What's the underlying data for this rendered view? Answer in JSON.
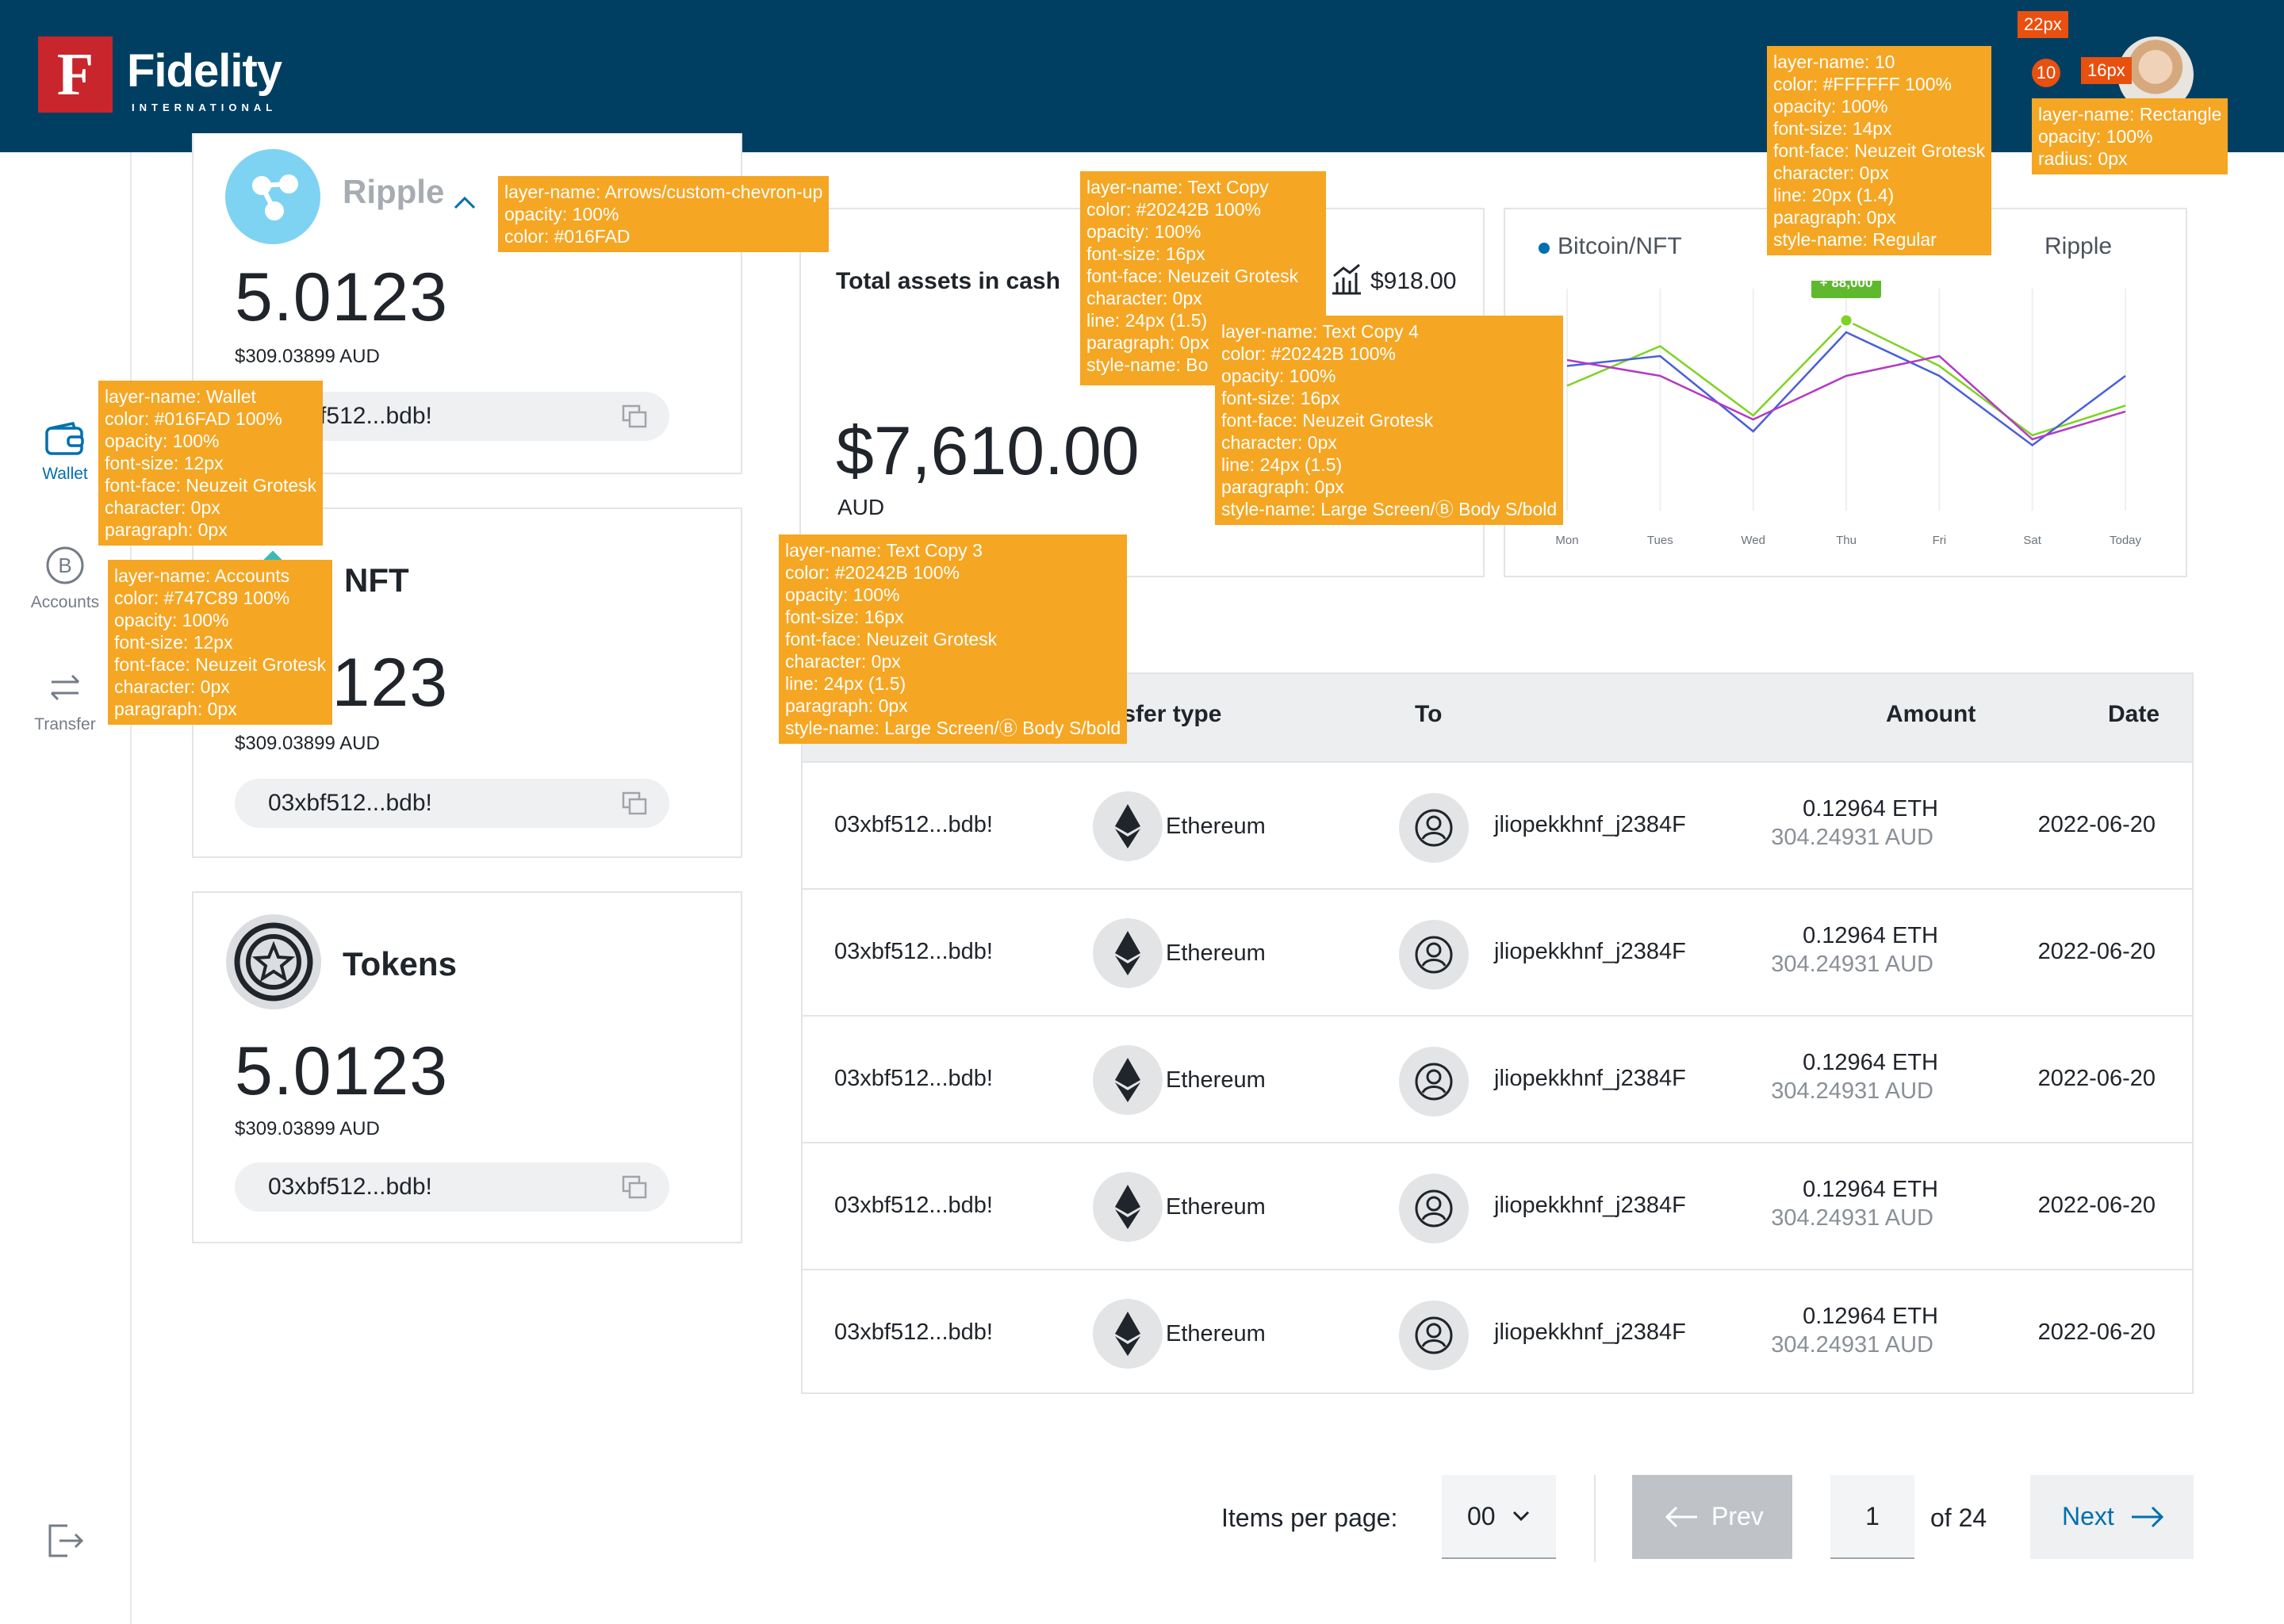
{
  "header": {
    "brand_mark": "F",
    "brand_name": "Fidelity",
    "brand_sub": "INTERNATIONAL",
    "notification_count": "10"
  },
  "sidebar": {
    "items": [
      {
        "label": "Wallet",
        "icon": "wallet-icon",
        "active": true
      },
      {
        "label": "Accounts",
        "icon": "bitcoin-icon",
        "active": false
      },
      {
        "label": "Transfer",
        "icon": "transfer-icon",
        "active": false
      }
    ],
    "logout_icon": "logout-icon"
  },
  "wallets": [
    {
      "name": "Ripple",
      "amount": "5.0123",
      "aud": "$309.03899 AUD",
      "address": "03xbf512...bdb!",
      "icon": "ripple-icon"
    },
    {
      "name": "NFT",
      "amount": "5.0123",
      "aud": "$309.03899 AUD",
      "address": "03xbf512...bdb!",
      "icon": "nft-icon"
    },
    {
      "name": "Tokens",
      "amount": "5.0123",
      "aud": "$309.03899 AUD",
      "address": "03xbf512...bdb!",
      "icon": "tokens-icon"
    }
  ],
  "assets": {
    "title": "Total assets in cash",
    "change_value": "$918.00",
    "total": "$7,610.00",
    "currency": "AUD"
  },
  "chart_data": {
    "type": "line",
    "legend": [
      "Bitcoin/NFT",
      "Ripple"
    ],
    "categories": [
      "Mon",
      "Tues",
      "Wed",
      "Thu",
      "Fri",
      "Sat",
      "Today"
    ],
    "series": [
      {
        "name": "Bitcoin/NFT",
        "color": "#7ED321",
        "values": [
          55,
          75,
          40,
          88,
          65,
          30,
          45
        ]
      },
      {
        "name": "",
        "color": "#4A5FD9",
        "values": [
          65,
          70,
          32,
          82,
          60,
          25,
          60
        ]
      },
      {
        "name": "",
        "color": "#B33BC4",
        "values": [
          68,
          60,
          38,
          60,
          70,
          28,
          42
        ]
      }
    ],
    "highlight": {
      "label": "+ 88,000",
      "category": "Thu",
      "value": 88
    },
    "ylim": [
      0,
      100
    ],
    "grid": true,
    "legend_position": "top"
  },
  "table": {
    "headers": [
      "Transfer type",
      "To",
      "Amount",
      "Date"
    ],
    "rows": [
      {
        "from": "03xbf512...bdb!",
        "type": "Ethereum",
        "to": "jliopekkhnf_j2384F",
        "eth": "0.12964 ETH",
        "aud": "304.24931 AUD",
        "date": "2022-06-20"
      },
      {
        "from": "03xbf512...bdb!",
        "type": "Ethereum",
        "to": "jliopekkhnf_j2384F",
        "eth": "0.12964 ETH",
        "aud": "304.24931 AUD",
        "date": "2022-06-20"
      },
      {
        "from": "03xbf512...bdb!",
        "type": "Ethereum",
        "to": "jliopekkhnf_j2384F",
        "eth": "0.12964 ETH",
        "aud": "304.24931 AUD",
        "date": "2022-06-20"
      },
      {
        "from": "03xbf512...bdb!",
        "type": "Ethereum",
        "to": "jliopekkhnf_j2384F",
        "eth": "0.12964 ETH",
        "aud": "304.24931 AUD",
        "date": "2022-06-20"
      },
      {
        "from": "03xbf512...bdb!",
        "type": "Ethereum",
        "to": "jliopekkhnf_j2384F",
        "eth": "0.12964 ETH",
        "aud": "304.24931 AUD",
        "date": "2022-06-20"
      }
    ]
  },
  "pagination": {
    "items_label": "Items per page:",
    "items_value": "00",
    "prev": "Prev",
    "page": "1",
    "of": "of 24",
    "next": "Next"
  },
  "colors": {
    "header_bg": "#003F62",
    "accent": "#016FAD",
    "text": "#20242B",
    "muted": "#747C89",
    "annotation": "#F5A623"
  },
  "annotations": {
    "chevron": [
      "layer-name: Arrows/custom-chevron-up",
      "opacity: 100%",
      "color: #016FAD"
    ],
    "text_copy": [
      "layer-name: Text Copy",
      "color: #20242B 100%",
      "opacity: 100%",
      "font-size: 16px",
      "font-face: Neuzeit Grotesk",
      "character: 0px",
      "line: 24px (1.5)",
      "paragraph: 0px",
      "style-name: Bo"
    ],
    "text_copy_4": [
      "layer-name: Text Copy 4",
      "color: #20242B 100%",
      "opacity: 100%",
      "font-size: 16px",
      "font-face: Neuzeit Grotesk",
      "character: 0px",
      "line: 24px (1.5)",
      "paragraph: 0px",
      "style-name: Large Screen/Ⓑ Body S/bold"
    ],
    "text_copy_3": [
      "layer-name: Text Copy 3",
      "color: #20242B 100%",
      "opacity: 100%",
      "font-size: 16px",
      "font-face: Neuzeit Grotesk",
      "character: 0px",
      "line: 24px (1.5)",
      "paragraph: 0px",
      "style-name: Large Screen/Ⓑ Body S/bold"
    ],
    "layer_10": [
      "layer-name: 10",
      "color: #FFFFFF 100%",
      "opacity: 100%",
      "font-size: 14px",
      "font-face: Neuzeit Grotesk",
      "character: 0px",
      "line: 20px (1.4)",
      "paragraph: 0px",
      "style-name: Regular"
    ],
    "rectangle": [
      "layer-name: Rectangle",
      "opacity: 100%",
      "radius: 0px"
    ],
    "wallet": [
      "layer-name: Wallet",
      "color: #016FAD 100%",
      "opacity: 100%",
      "font-size: 12px",
      "font-face: Neuzeit Grotesk",
      "character: 0px",
      "paragraph: 0px"
    ],
    "accounts": [
      "layer-name: Accounts",
      "color: #747C89 100%",
      "opacity: 100%",
      "font-size: 12px",
      "font-face: Neuzeit Grotesk",
      "character: 0px",
      "paragraph: 0px"
    ],
    "tag_22": "22px",
    "tag_16": "16px"
  }
}
